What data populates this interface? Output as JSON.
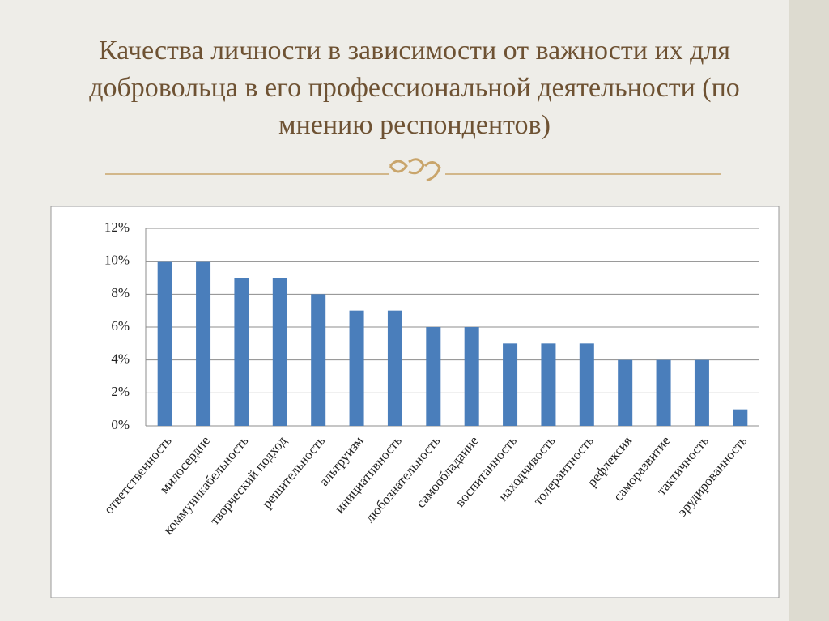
{
  "chart_data": {
    "type": "bar",
    "title": "Качества личности в зависимости от важности их для добровольца в его профессиональной деятельности (по мнению респондентов)",
    "categories": [
      "ответственность",
      "милосердие",
      "коммуникабельность",
      "творческий подход",
      "решительность",
      "альтруизм",
      "инициативность",
      "любознательность",
      "самообладание",
      "воспитанность",
      "находчивость",
      "толерантность",
      "рефлексия",
      "саморазвитие",
      "тактичность",
      "эрудированность"
    ],
    "values": [
      10,
      10,
      9,
      9,
      8,
      7,
      7,
      6,
      6,
      5,
      5,
      5,
      4,
      4,
      4,
      1
    ],
    "color": "#4a7ebb",
    "ylim": [
      0,
      12
    ],
    "yticks": [
      {
        "value": 0,
        "label": "0%"
      },
      {
        "value": 2,
        "label": "2%"
      },
      {
        "value": 4,
        "label": "4%"
      },
      {
        "value": 6,
        "label": "6%"
      },
      {
        "value": 8,
        "label": "8%"
      },
      {
        "value": 10,
        "label": "10%"
      },
      {
        "value": 12,
        "label": "12%"
      }
    ],
    "grid": true
  }
}
